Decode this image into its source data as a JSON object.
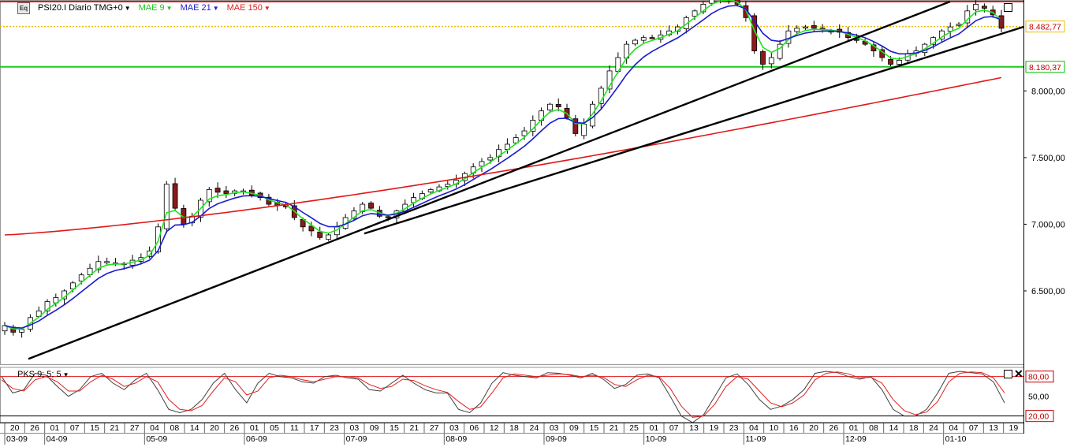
{
  "header": {
    "symbol_label": "PSI20.I Diario TMG+0",
    "icon_label": "Eq",
    "indicators": [
      {
        "label": "MAE 9",
        "color": "#1ec81e"
      },
      {
        "label": "MAE 21",
        "color": "#2020c8"
      },
      {
        "label": "MAE 150",
        "color": "#e02020"
      }
    ]
  },
  "oscillator_header": {
    "label": "PKS 9; 5; 5"
  },
  "price_axis": {
    "ticks": [
      "8.000,00",
      "7.500,00",
      "7.000,00",
      "6.500,00"
    ],
    "tick_values": [
      8000,
      7500,
      7000,
      6500
    ],
    "range": [
      5950,
      8670
    ],
    "level_labels": [
      {
        "text": "8.482,77",
        "value": 8482.77,
        "color": "#e8c000"
      },
      {
        "text": "8.180,37",
        "value": 8180.37,
        "color": "#00c000"
      }
    ]
  },
  "oscillator_axis": {
    "range": [
      10,
      94
    ],
    "labels": [
      {
        "text": "80,00",
        "value": 80,
        "boxed": true
      },
      {
        "text": "50,00",
        "value": 50,
        "boxed": false
      },
      {
        "text": "20,00",
        "value": 20,
        "boxed": true
      }
    ]
  },
  "time_axis": {
    "days": [
      "20",
      "26",
      "01",
      "07",
      "15",
      "21",
      "27",
      "04",
      "08",
      "14",
      "20",
      "26",
      "01",
      "05",
      "11",
      "17",
      "23",
      "03",
      "09",
      "15",
      "21",
      "27",
      "03",
      "06",
      "12",
      "18",
      "24",
      "03",
      "09",
      "15",
      "21",
      "25",
      "01",
      "07",
      "13",
      "19",
      "23",
      "04",
      "10",
      "16",
      "20",
      "26",
      "01",
      "08",
      "14",
      "18",
      "24",
      "04",
      "07",
      "13",
      "19"
    ],
    "months": [
      {
        "label": "03-09",
        "index": 0
      },
      {
        "label": "04-09",
        "index": 2
      },
      {
        "label": "05-09",
        "index": 7
      },
      {
        "label": "06-09",
        "index": 12
      },
      {
        "label": "07-09",
        "index": 17
      },
      {
        "label": "08-09",
        "index": 22
      },
      {
        "label": "09-09",
        "index": 27
      },
      {
        "label": "10-09",
        "index": 32
      },
      {
        "label": "11-09",
        "index": 37
      },
      {
        "label": "12-09",
        "index": 42
      },
      {
        "label": "01-10",
        "index": 47
      }
    ]
  },
  "colors": {
    "up": "#ffffff",
    "down": "#8b1a1a",
    "wick": "#000000",
    "ma9": "#1ee61e",
    "ma21": "#1a1ad0",
    "ma150": "#e01818",
    "trend": "#000000",
    "resistance": "#e01818",
    "support": "#22c822",
    "level": "#e8c000",
    "k_line": "#404040",
    "d_line": "#e02020"
  },
  "chart_data": {
    "type": "candlestick",
    "price_series_close": [
      6240,
      6190,
      6210,
      6300,
      6350,
      6420,
      6450,
      6500,
      6560,
      6620,
      6670,
      6720,
      6720,
      6710,
      6700,
      6730,
      6750,
      6800,
      6980,
      7300,
      7120,
      7000,
      7060,
      7180,
      7260,
      7240,
      7230,
      7250,
      7250,
      7220,
      7200,
      7150,
      7140,
      7130,
      7050,
      6980,
      6950,
      6900,
      6920,
      6980,
      7050,
      7100,
      7150,
      7120,
      7060,
      7050,
      7100,
      7150,
      7200,
      7230,
      7260,
      7280,
      7300,
      7330,
      7380,
      7430,
      7470,
      7500,
      7560,
      7600,
      7650,
      7700,
      7780,
      7850,
      7900,
      7880,
      7800,
      7680,
      7750,
      7900,
      8020,
      8150,
      8250,
      8350,
      8380,
      8400,
      8400,
      8420,
      8450,
      8480,
      8550,
      8600,
      8650,
      8700,
      8700,
      8690,
      8650,
      8550,
      8300,
      8200,
      8250,
      8350,
      8450,
      8470,
      8480,
      8470,
      8460,
      8450,
      8440,
      8400,
      8380,
      8350,
      8300,
      8250,
      8200,
      8230,
      8280,
      8300,
      8350,
      8400,
      8450,
      8480,
      8500,
      8600,
      8650,
      8620,
      8570,
      8470
    ],
    "ma150_end_value": 8100,
    "trendlines": [
      {
        "name": "trend-1",
        "from": {
          "date": "26-03",
          "value": 5990
        },
        "to": {
          "date": "22-12",
          "value": 8670
        }
      },
      {
        "name": "trend-2",
        "from": {
          "date": "09-07",
          "value": 6930
        },
        "to": {
          "date": "20-01",
          "value": 8480
        }
      }
    ],
    "horizontal_levels": [
      {
        "name": "resistance",
        "value": 8670,
        "color": "#e01818"
      },
      {
        "name": "level-8482",
        "value": 8482.77,
        "color": "#e8c000"
      },
      {
        "name": "support",
        "value": 8180.37,
        "color": "#22c822"
      }
    ],
    "oscillator": {
      "name": "PKS 9; 5; 5",
      "upper": 80,
      "lower": 20,
      "k": [
        80,
        55,
        60,
        85,
        82,
        65,
        50,
        60,
        80,
        85,
        70,
        60,
        75,
        85,
        60,
        30,
        25,
        30,
        45,
        70,
        85,
        60,
        40,
        70,
        85,
        80,
        78,
        72,
        70,
        80,
        82,
        78,
        76,
        60,
        58,
        70,
        82,
        70,
        60,
        55,
        55,
        30,
        25,
        40,
        70,
        86,
        82,
        80,
        78,
        86,
        85,
        82,
        78,
        85,
        76,
        62,
        68,
        82,
        84,
        78,
        50,
        20,
        10,
        22,
        50,
        78,
        84,
        68,
        45,
        30,
        35,
        45,
        60,
        85,
        88,
        86,
        80,
        76,
        80,
        60,
        30,
        20,
        20,
        30,
        55,
        85,
        88,
        86,
        84,
        72,
        40
      ],
      "d": [
        75,
        62,
        58,
        75,
        80,
        72,
        58,
        58,
        72,
        82,
        76,
        65,
        70,
        80,
        72,
        45,
        30,
        28,
        36,
        58,
        78,
        72,
        52,
        58,
        78,
        82,
        80,
        75,
        72,
        76,
        80,
        80,
        78,
        68,
        62,
        65,
        76,
        74,
        66,
        60,
        56,
        42,
        30,
        34,
        55,
        78,
        84,
        82,
        80,
        82,
        84,
        83,
        80,
        82,
        79,
        68,
        65,
        75,
        82,
        80,
        62,
        35,
        18,
        20,
        38,
        65,
        80,
        76,
        58,
        40,
        34,
        40,
        52,
        75,
        85,
        87,
        84,
        78,
        79,
        70,
        45,
        28,
        22,
        26,
        42,
        72,
        85,
        87,
        86,
        78,
        55
      ]
    }
  }
}
